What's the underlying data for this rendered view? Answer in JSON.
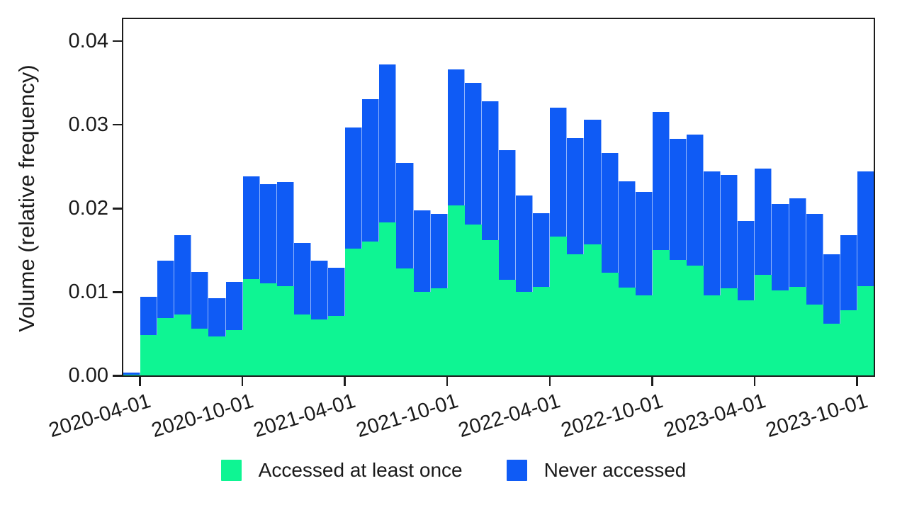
{
  "colors": {
    "accessed": "#0ef593",
    "never": "#0f5bf5",
    "axis": "#1c1c1c",
    "text": "#1a1a1a",
    "background": "#ffffff"
  },
  "y_axis": {
    "label": "Volume (relative frequency)",
    "tick_labels": [
      "0.00",
      "0.01",
      "0.02",
      "0.03",
      "0.04"
    ],
    "tick_values": [
      0,
      0.01,
      0.02,
      0.03,
      0.04
    ]
  },
  "x_axis": {
    "tick_labels": [
      "2020-04-01",
      "2020-10-01",
      "2021-04-01",
      "2021-10-01",
      "2022-04-01",
      "2022-10-01",
      "2023-04-01",
      "2023-10-01"
    ],
    "tick_month_indices": [
      1,
      7,
      13,
      19,
      25,
      31,
      37,
      43
    ]
  },
  "legend": [
    {
      "label": "Accessed at least once",
      "color": "#0ef593"
    },
    {
      "label": "Never accessed",
      "color": "#0f5bf5"
    }
  ],
  "chart_data": {
    "type": "bar",
    "stacked": true,
    "title": "",
    "xlabel": "",
    "ylabel": "Volume (relative frequency)",
    "ylim": [
      0,
      0.0427
    ],
    "grid": false,
    "legend_position": "bottom",
    "categories": [
      "2020-03",
      "2020-04",
      "2020-05",
      "2020-06",
      "2020-07",
      "2020-08",
      "2020-09",
      "2020-10",
      "2020-11",
      "2020-12",
      "2021-01",
      "2021-02",
      "2021-03",
      "2021-04",
      "2021-05",
      "2021-06",
      "2021-07",
      "2021-08",
      "2021-09",
      "2021-10",
      "2021-11",
      "2021-12",
      "2022-01",
      "2022-02",
      "2022-03",
      "2022-04",
      "2022-05",
      "2022-06",
      "2022-07",
      "2022-08",
      "2022-09",
      "2022-10",
      "2022-11",
      "2022-12",
      "2023-01",
      "2023-02",
      "2023-03",
      "2023-04",
      "2023-05",
      "2023-06",
      "2023-07",
      "2023-08",
      "2023-09",
      "2023-10"
    ],
    "series": [
      {
        "name": "Accessed at least once",
        "color": "#0ef593",
        "values": [
          0.0001,
          0.0048,
          0.0069,
          0.0073,
          0.0056,
          0.0047,
          0.0054,
          0.0115,
          0.011,
          0.0107,
          0.0073,
          0.0067,
          0.0071,
          0.0152,
          0.016,
          0.0183,
          0.0128,
          0.01,
          0.0104,
          0.0203,
          0.018,
          0.0162,
          0.0114,
          0.01,
          0.0106,
          0.0166,
          0.0145,
          0.0157,
          0.0123,
          0.0105,
          0.0096,
          0.015,
          0.0138,
          0.0131,
          0.0096,
          0.0104,
          0.009,
          0.012,
          0.0102,
          0.0106,
          0.0085,
          0.0062,
          0.0078,
          0.0107
        ]
      },
      {
        "name": "Never accessed",
        "color": "#0f5bf5",
        "values": [
          0.0002,
          0.0046,
          0.0068,
          0.0095,
          0.0068,
          0.0045,
          0.0058,
          0.0123,
          0.0119,
          0.0124,
          0.0085,
          0.007,
          0.0058,
          0.0144,
          0.017,
          0.0189,
          0.0126,
          0.0097,
          0.0089,
          0.0163,
          0.017,
          0.0166,
          0.0155,
          0.0115,
          0.0088,
          0.0154,
          0.0139,
          0.0149,
          0.0143,
          0.0127,
          0.0123,
          0.0165,
          0.0145,
          0.0157,
          0.0148,
          0.0136,
          0.0095,
          0.0127,
          0.0103,
          0.0106,
          0.0108,
          0.0083,
          0.009,
          0.0137
        ]
      }
    ]
  }
}
